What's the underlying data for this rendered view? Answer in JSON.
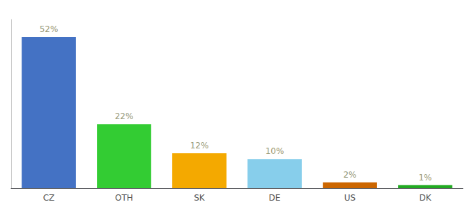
{
  "chart_data": {
    "type": "bar",
    "categories": [
      "CZ",
      "OTH",
      "SK",
      "DE",
      "US",
      "DK"
    ],
    "values": [
      52,
      22,
      12,
      10,
      2,
      1
    ],
    "value_labels": [
      "52%",
      "22%",
      "12%",
      "10%",
      "2%",
      "1%"
    ],
    "colors": [
      "#4472C4",
      "#33CC33",
      "#F4A900",
      "#87CEEB",
      "#CC6600",
      "#22AA22"
    ],
    "ylim": [
      0,
      58
    ],
    "data_labels": true,
    "tick_labels": "x",
    "grid": false
  }
}
